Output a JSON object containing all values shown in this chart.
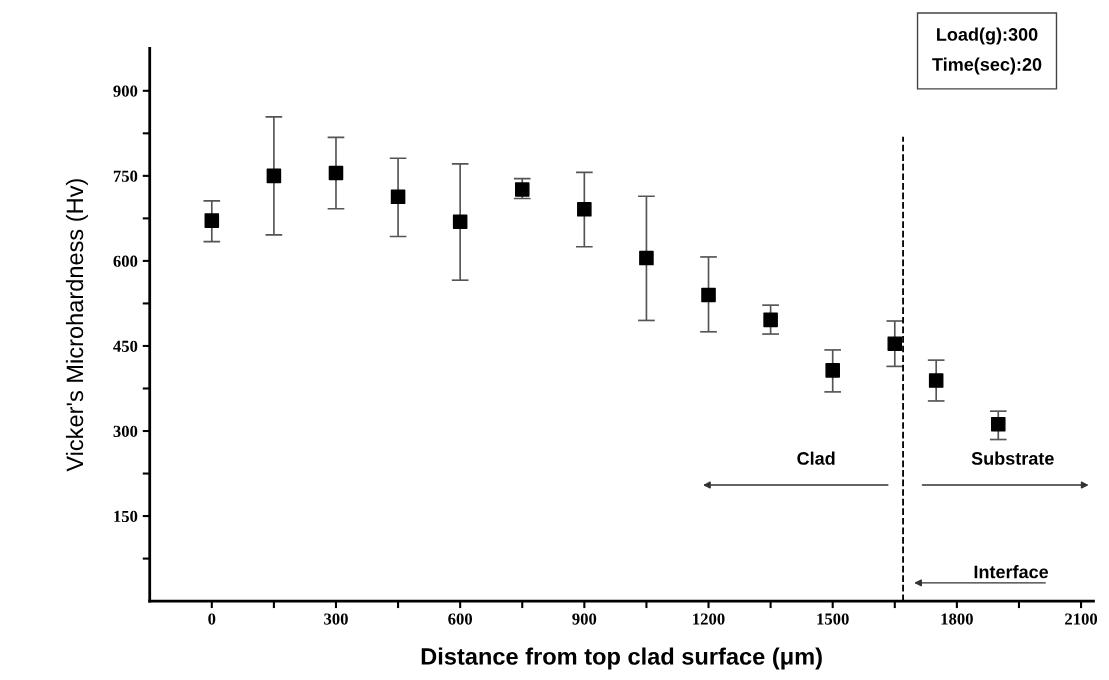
{
  "chart_data": {
    "type": "scatter",
    "xlabel": "Distance from top clad surface (μm)",
    "ylabel": "Vicker's Microhardness (Hv)",
    "x": [
      0,
      150,
      300,
      450,
      600,
      750,
      900,
      1050,
      1200,
      1350,
      1500,
      1650,
      1750,
      1900
    ],
    "series": [
      {
        "color": "#000000",
        "values": [
          671,
          750,
          755,
          713,
          669,
          726,
          691,
          605,
          540,
          496,
          407,
          454,
          389,
          312
        ],
        "errors": [
          [
            634,
            706
          ],
          [
            646,
            854
          ],
          [
            692,
            818
          ],
          [
            643,
            781
          ],
          [
            566,
            771
          ],
          [
            710,
            745
          ],
          [
            625,
            756
          ],
          [
            495,
            714
          ],
          [
            475,
            607
          ],
          [
            471,
            522
          ],
          [
            369,
            443
          ],
          [
            414,
            494
          ],
          [
            353,
            425
          ],
          [
            285,
            335
          ]
        ]
      }
    ],
    "marker": "square",
    "xlim": [
      -150,
      2130
    ],
    "xticks": [
      0,
      {
        "value": 150,
        "label": null
      },
      300,
      {
        "value": 450,
        "label": null
      },
      600,
      {
        "value": 750,
        "label": null
      },
      900,
      {
        "value": 1050,
        "label": null
      },
      1200,
      {
        "value": 1350,
        "label": null
      },
      1500,
      {
        "value": 1650,
        "label": null
      },
      1800,
      {
        "value": 1950,
        "label": null
      },
      2100
    ],
    "ylim": [
      0,
      975
    ],
    "yticks": [
      {
        "value": 75,
        "label": null
      },
      150,
      {
        "value": 225,
        "label": null
      },
      300,
      {
        "value": 375,
        "label": null
      },
      450,
      {
        "value": 525,
        "label": null
      },
      600,
      {
        "value": 675,
        "label": null
      },
      750,
      {
        "value": 825,
        "label": null
      },
      900
    ],
    "ref_lines": [
      {
        "axis": "x",
        "value": 1670,
        "label": "Interface",
        "color": "#000000",
        "line_style": "dashed"
      }
    ],
    "annotations": [
      "Load(g):300",
      "Time(sec):20",
      "Clad",
      "Substrate"
    ],
    "grid": false,
    "legend": false
  }
}
